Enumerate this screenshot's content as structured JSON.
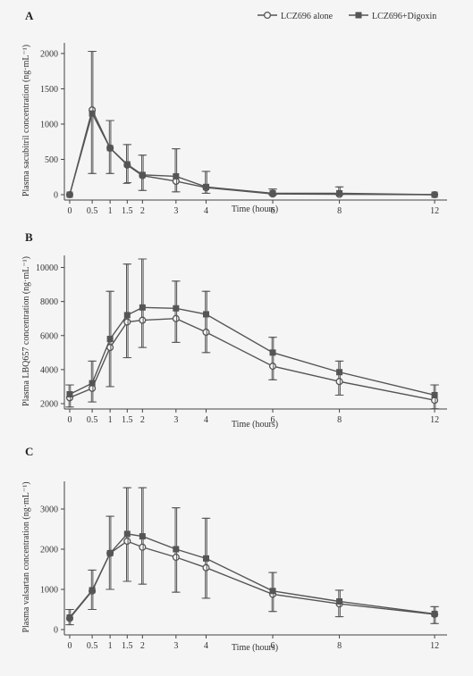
{
  "legend": {
    "items": [
      {
        "label": "LCZ696 alone",
        "marker": "open-circle"
      },
      {
        "label": "LCZ696+Digoxin",
        "marker": "filled-square"
      }
    ]
  },
  "colors": {
    "series_alone": "#555555",
    "series_combo": "#555555",
    "axis": "#444444"
  },
  "chart_data": [
    {
      "panel": "A",
      "type": "line",
      "ylabel": "Plasma sacubitril concentration (ng·mL⁻¹)",
      "xlabel": "Time (hours)",
      "xticks": [
        0,
        0.5,
        1,
        1.5,
        2,
        3,
        4,
        6,
        8,
        12
      ],
      "yticks": [
        0,
        500,
        1000,
        1500,
        2000
      ],
      "xlim": [
        0,
        12
      ],
      "ylim": [
        0,
        2100
      ],
      "x": [
        0,
        0.5,
        1,
        1.5,
        2,
        3,
        4,
        6,
        8,
        12
      ],
      "series": [
        {
          "name": "LCZ696 alone",
          "marker": "open-circle",
          "values": [
            0,
            1200,
            660,
            420,
            270,
            190,
            100,
            10,
            5,
            0
          ],
          "err_low": [
            0,
            300,
            300,
            160,
            60,
            40,
            20,
            0,
            0,
            0
          ],
          "err_high": [
            0,
            2030,
            1050,
            710,
            560,
            650,
            330,
            80,
            110,
            0
          ]
        },
        {
          "name": "LCZ696+Digoxin",
          "marker": "filled-square",
          "values": [
            0,
            1150,
            660,
            430,
            280,
            260,
            110,
            20,
            20,
            0
          ],
          "err_low": [
            0,
            300,
            300,
            170,
            60,
            40,
            20,
            0,
            0,
            0
          ],
          "err_high": [
            0,
            2030,
            1050,
            710,
            560,
            650,
            330,
            80,
            110,
            0
          ]
        }
      ]
    },
    {
      "panel": "B",
      "type": "line",
      "ylabel": "Plasma LBQ657 concentration (ng·mL⁻¹)",
      "xlabel": "Time (hours)",
      "xticks": [
        0,
        0.5,
        1,
        1.5,
        2,
        3,
        4,
        6,
        8,
        12
      ],
      "yticks": [
        2000,
        4000,
        6000,
        8000,
        10000
      ],
      "xlim": [
        0,
        12
      ],
      "ylim": [
        2000,
        10500
      ],
      "x": [
        0,
        0.5,
        1,
        1.5,
        2,
        3,
        4,
        6,
        8,
        12
      ],
      "series": [
        {
          "name": "LCZ696 alone",
          "marker": "open-circle",
          "values": [
            2350,
            2900,
            5300,
            6800,
            6900,
            7000,
            6200,
            4200,
            3300,
            2200
          ],
          "err_low": [
            1800,
            2100,
            3000,
            4700,
            5300,
            5600,
            5000,
            3400,
            2500,
            1700
          ],
          "err_high": [
            3100,
            4500,
            8600,
            10200,
            10500,
            9200,
            8600,
            5900,
            4500,
            3100
          ]
        },
        {
          "name": "LCZ696+Digoxin",
          "marker": "filled-square",
          "values": [
            2550,
            3200,
            5800,
            7200,
            7650,
            7600,
            7250,
            5000,
            3850,
            2500
          ],
          "err_low": [
            1800,
            2100,
            3000,
            4700,
            5300,
            5600,
            5000,
            3400,
            2500,
            1700
          ],
          "err_high": [
            3100,
            4500,
            8600,
            10200,
            10500,
            9200,
            8600,
            5900,
            4500,
            3100
          ]
        }
      ]
    },
    {
      "panel": "C",
      "type": "line",
      "ylabel": "Plasma valsartan concentration (ng·mL⁻¹)",
      "xlabel": "Time (hours)",
      "xticks": [
        0,
        0.5,
        1,
        1.5,
        2,
        3,
        4,
        6,
        8,
        12
      ],
      "yticks": [
        0,
        1000,
        2000,
        3000
      ],
      "xlim": [
        0,
        12
      ],
      "ylim": [
        0,
        3600
      ],
      "x": [
        0,
        0.5,
        1,
        1.5,
        2,
        3,
        4,
        6,
        8,
        12
      ],
      "series": [
        {
          "name": "LCZ696 alone",
          "marker": "open-circle",
          "values": [
            280,
            960,
            1900,
            2200,
            2050,
            1800,
            1540,
            880,
            640,
            380
          ],
          "err_low": [
            120,
            500,
            1000,
            1200,
            1130,
            930,
            780,
            450,
            320,
            150
          ],
          "err_high": [
            500,
            1480,
            2820,
            3530,
            3530,
            3030,
            2770,
            1420,
            980,
            570
          ]
        },
        {
          "name": "LCZ696+Digoxin",
          "marker": "filled-square",
          "values": [
            300,
            980,
            1900,
            2380,
            2320,
            2000,
            1770,
            960,
            700,
            390
          ],
          "err_low": [
            120,
            500,
            1000,
            1200,
            1130,
            930,
            780,
            450,
            320,
            150
          ],
          "err_high": [
            500,
            1480,
            2820,
            3530,
            3530,
            3030,
            2770,
            1420,
            980,
            570
          ]
        }
      ]
    }
  ]
}
